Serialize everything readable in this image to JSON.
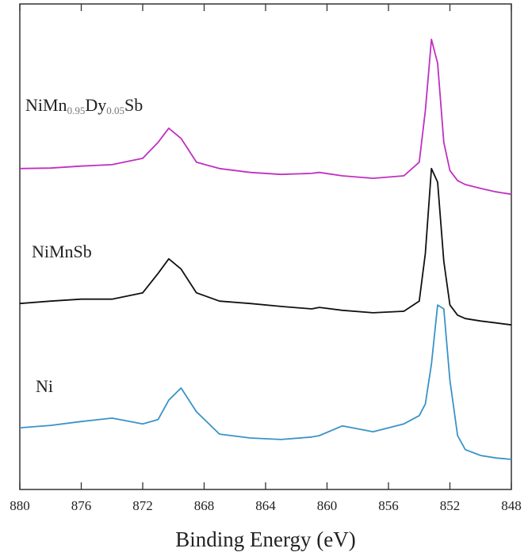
{
  "chart_data": {
    "type": "line",
    "x_label": "Binding Energy (eV)",
    "xlim": [
      880,
      848
    ],
    "xticks": [
      880,
      876,
      872,
      868,
      864,
      860,
      856,
      852,
      848
    ],
    "ylim": [
      0,
      100
    ],
    "x": [
      880,
      878,
      876,
      874,
      872,
      871,
      870.3,
      869.5,
      868.5,
      867,
      865,
      863,
      861,
      860.5,
      859,
      857,
      855,
      854,
      853.6,
      853.2,
      852.8,
      852.4,
      852,
      851.5,
      851,
      850,
      849,
      848
    ],
    "series": [
      {
        "name": "NiMn0.95Dy0.05Sb",
        "color": "#c030c0",
        "values": [
          66.1,
          66.2,
          66.6,
          66.9,
          68.2,
          71.5,
          74.4,
          72.3,
          67.4,
          66.1,
          65.3,
          64.9,
          65.1,
          65.3,
          64.6,
          64.1,
          64.6,
          67.4,
          78.0,
          92.7,
          87.8,
          71.5,
          65.7,
          63.6,
          62.8,
          62.0,
          61.3,
          60.8
        ]
      },
      {
        "name": "NiMnSb",
        "color": "#111111",
        "values": [
          38.3,
          38.8,
          39.2,
          39.2,
          40.5,
          44.5,
          47.5,
          45.4,
          40.5,
          38.8,
          38.3,
          37.7,
          37.2,
          37.5,
          36.9,
          36.4,
          36.7,
          38.8,
          48.6,
          66.1,
          63.3,
          47.0,
          38.0,
          35.9,
          35.2,
          34.7,
          34.3,
          33.9
        ]
      },
      {
        "name": "Ni",
        "color": "#3a93c8",
        "values": [
          12.7,
          13.2,
          14.0,
          14.7,
          13.5,
          14.4,
          18.4,
          20.9,
          16.0,
          11.4,
          10.6,
          10.3,
          10.8,
          11.1,
          13.1,
          11.9,
          13.5,
          15.2,
          17.6,
          25.8,
          38.0,
          37.2,
          22.5,
          11.1,
          8.2,
          7.0,
          6.5,
          6.2
        ]
      }
    ]
  }
}
